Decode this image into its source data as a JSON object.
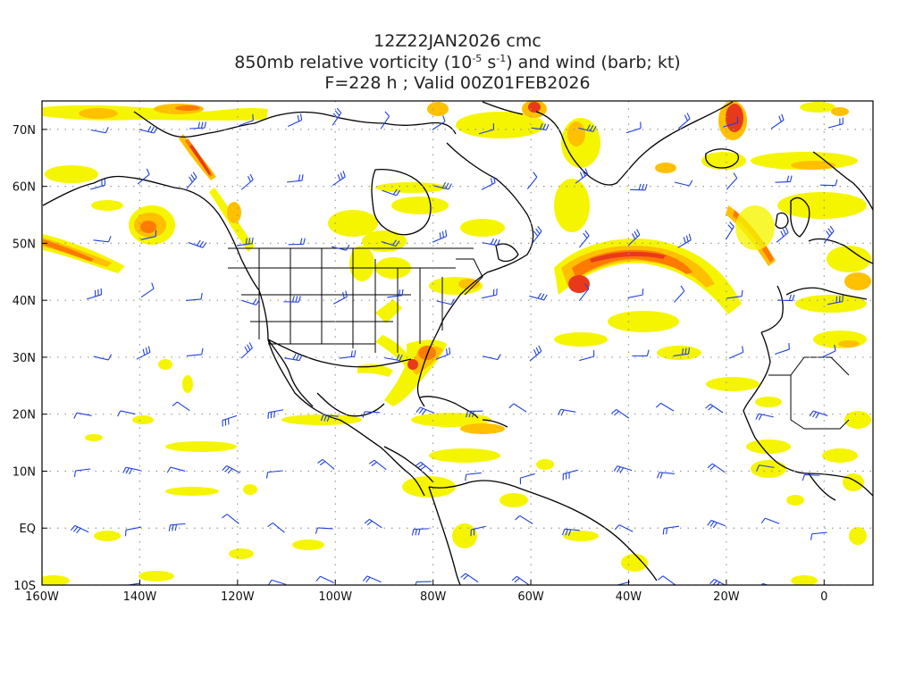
{
  "title": {
    "line1": "12Z22JAN2026 cmc",
    "line2_prefix": "850mb relative vorticity (10",
    "line2_exp1": "-5",
    "line2_mid": " s",
    "line2_exp2": "-1",
    "line2_suffix": ") and wind (barb; kt)",
    "line3": "F=228 h ; Valid 00Z01FEB2026"
  },
  "axes": {
    "lat_labels": [
      "70N",
      "60N",
      "50N",
      "40N",
      "30N",
      "20N",
      "10N",
      "EQ",
      "10S"
    ],
    "lon_labels": [
      "160W",
      "140W",
      "120W",
      "100W",
      "80W",
      "60W",
      "40W",
      "20W",
      "0"
    ],
    "lat_range": [
      -10,
      75
    ],
    "lon_range": [
      -160,
      10
    ],
    "grid": "dotted"
  },
  "colors": {
    "shade_low": "#f5f500",
    "shade_mid": "#ffc000",
    "shade_high": "#ff7a00",
    "shade_max": "#e83a1a",
    "barb": "#1f3fe0",
    "coast": "#000000",
    "grid": "#999999"
  }
}
